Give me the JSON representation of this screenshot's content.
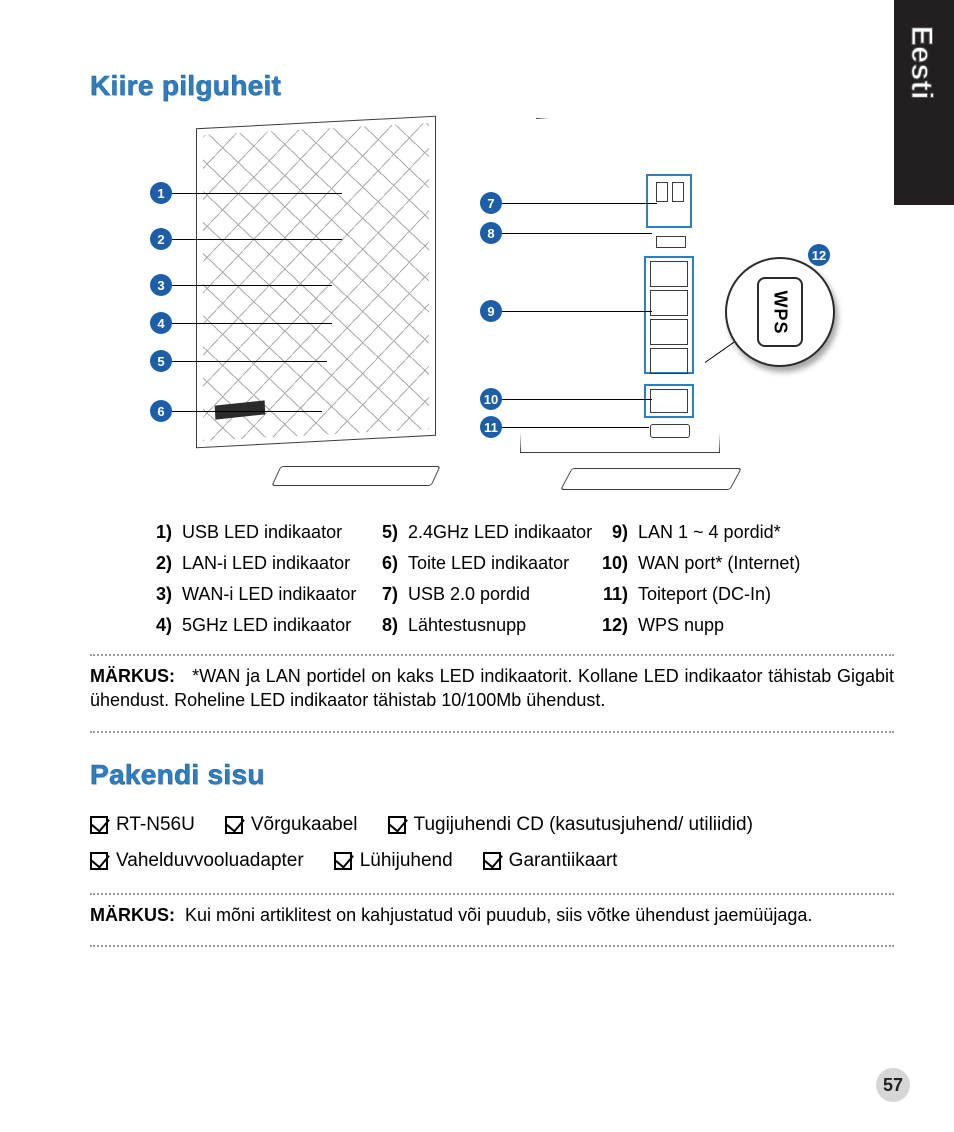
{
  "language_tab": "Eesti",
  "page_number": "57",
  "colors": {
    "accent": "#2d7fc4",
    "bubble": "#1c5fa8",
    "tab_bg": "#231f20"
  },
  "section1": {
    "title": "Kiire pilguheit",
    "wps_label": "WPS",
    "bubbles_front": [
      "1",
      "2",
      "3",
      "4",
      "5",
      "6"
    ],
    "bubbles_back": [
      "7",
      "8",
      "9",
      "10",
      "11",
      "12"
    ],
    "legend": [
      {
        "n": "1)",
        "t": "USB LED indikaator"
      },
      {
        "n": "2)",
        "t": "LAN-i LED indikaator"
      },
      {
        "n": "3)",
        "t": "WAN-i LED indikaator"
      },
      {
        "n": "4)",
        "t": "5GHz LED indikaator"
      },
      {
        "n": "5)",
        "t": "2.4GHz LED indikaator"
      },
      {
        "n": "6)",
        "t": "Toite LED indikaator"
      },
      {
        "n": "7)",
        "t": "USB 2.0 pordid"
      },
      {
        "n": "8)",
        "t": "Lähtestusnupp"
      },
      {
        "n": "9)",
        "t": "LAN 1 ~ 4 pordid*"
      },
      {
        "n": "10)",
        "t": "WAN port* (Internet)"
      },
      {
        "n": "11)",
        "t": "Toiteport (DC-In)"
      },
      {
        "n": "12)",
        "t": "WPS nupp"
      }
    ],
    "note_label": "MÄRKUS:",
    "note_body": "*WAN ja LAN portidel on kaks LED indikaatorit. Kollane LED indikaator tähistab Gigabit ühendust. Roheline LED indikaator tähistab 10/100Mb ühendust."
  },
  "section2": {
    "title": "Pakendi sisu",
    "items_row1": [
      "RT-N56U",
      "Võrgukaabel",
      "Tugijuhendi CD (kasutusjuhend/ utiliidid)"
    ],
    "items_row2": [
      "Vahelduvvooluadapter",
      "Lühijuhend",
      "Garantiikaart"
    ],
    "note_label": "MÄRKUS:",
    "note_body": "Kui mõni artiklitest on kahjustatud või puudub, siis võtke ühendust jaemüüjaga."
  }
}
